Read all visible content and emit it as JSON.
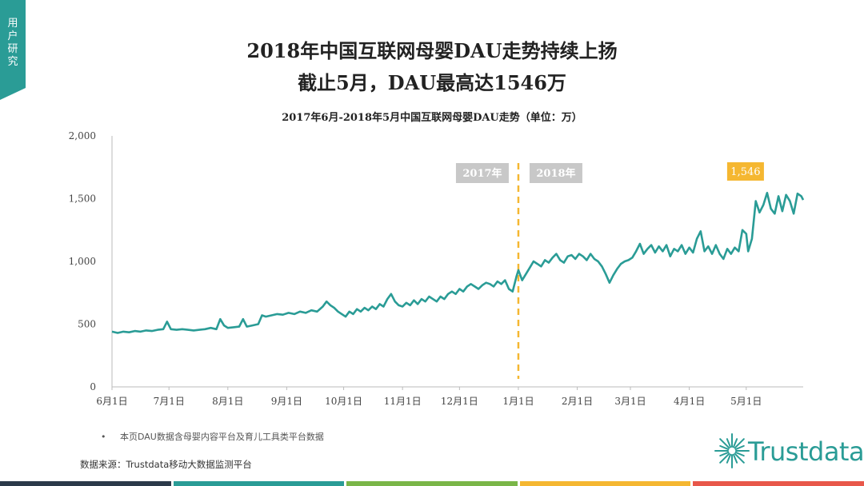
{
  "side_tab": {
    "label": "用户研究"
  },
  "header": {
    "title_line1": "2018年中国互联网母婴DAU走势持续上扬",
    "title_line2": "截止5月，DAU最高达1546万"
  },
  "chart_data": {
    "type": "line",
    "title": "2017年6月-2018年5月中国互联网母婴DAU走势（单位：万）",
    "xlabel": "",
    "ylabel": "",
    "ylim": [
      0,
      2000
    ],
    "yticks": [
      "0",
      "500",
      "1,000",
      "1,500",
      "2,000"
    ],
    "ytick_values": [
      0,
      500,
      1000,
      1500,
      2000
    ],
    "x_tick_labels": [
      "6月1日",
      "7月1日",
      "8月1日",
      "9月1日",
      "10月1日",
      "11月1日",
      "12月1日",
      "1月1日",
      "2月1日",
      "3月1日",
      "4月1日",
      "5月1日"
    ],
    "x_tick_days": [
      0,
      30,
      61,
      92,
      122,
      153,
      183,
      214,
      245,
      273,
      304,
      334
    ],
    "x_range_days": [
      0,
      364
    ],
    "grid": false,
    "line_color": "#2a9c96",
    "divider": {
      "day": 214,
      "color": "#f5b731",
      "left_label": "2017年",
      "right_label": "2018年"
    },
    "peak_label": {
      "text": "1,546",
      "day": 337,
      "value": 1546,
      "color": "#f5b731"
    },
    "series": [
      {
        "points": [
          [
            0,
            440
          ],
          [
            3,
            430
          ],
          [
            6,
            440
          ],
          [
            9,
            435
          ],
          [
            12,
            445
          ],
          [
            15,
            440
          ],
          [
            18,
            450
          ],
          [
            21,
            445
          ],
          [
            24,
            455
          ],
          [
            27,
            460
          ],
          [
            29,
            520
          ],
          [
            31,
            460
          ],
          [
            34,
            455
          ],
          [
            37,
            460
          ],
          [
            40,
            455
          ],
          [
            43,
            450
          ],
          [
            46,
            455
          ],
          [
            49,
            460
          ],
          [
            52,
            470
          ],
          [
            55,
            460
          ],
          [
            57,
            540
          ],
          [
            59,
            490
          ],
          [
            61,
            470
          ],
          [
            64,
            475
          ],
          [
            67,
            480
          ],
          [
            69,
            540
          ],
          [
            71,
            480
          ],
          [
            74,
            490
          ],
          [
            77,
            500
          ],
          [
            79,
            570
          ],
          [
            81,
            560
          ],
          [
            84,
            570
          ],
          [
            87,
            580
          ],
          [
            90,
            575
          ],
          [
            93,
            590
          ],
          [
            96,
            580
          ],
          [
            99,
            600
          ],
          [
            102,
            590
          ],
          [
            105,
            610
          ],
          [
            108,
            600
          ],
          [
            111,
            640
          ],
          [
            113,
            680
          ],
          [
            115,
            650
          ],
          [
            117,
            630
          ],
          [
            119,
            600
          ],
          [
            121,
            580
          ],
          [
            123,
            560
          ],
          [
            125,
            600
          ],
          [
            127,
            580
          ],
          [
            129,
            620
          ],
          [
            131,
            600
          ],
          [
            133,
            630
          ],
          [
            135,
            610
          ],
          [
            137,
            640
          ],
          [
            139,
            620
          ],
          [
            141,
            660
          ],
          [
            143,
            640
          ],
          [
            145,
            700
          ],
          [
            147,
            740
          ],
          [
            149,
            680
          ],
          [
            151,
            650
          ],
          [
            153,
            640
          ],
          [
            155,
            670
          ],
          [
            157,
            650
          ],
          [
            159,
            690
          ],
          [
            161,
            660
          ],
          [
            163,
            700
          ],
          [
            165,
            680
          ],
          [
            167,
            720
          ],
          [
            169,
            700
          ],
          [
            171,
            680
          ],
          [
            173,
            720
          ],
          [
            175,
            700
          ],
          [
            177,
            740
          ],
          [
            179,
            760
          ],
          [
            181,
            740
          ],
          [
            183,
            780
          ],
          [
            185,
            760
          ],
          [
            187,
            800
          ],
          [
            189,
            820
          ],
          [
            191,
            800
          ],
          [
            193,
            780
          ],
          [
            195,
            810
          ],
          [
            197,
            830
          ],
          [
            199,
            820
          ],
          [
            201,
            800
          ],
          [
            203,
            840
          ],
          [
            205,
            820
          ],
          [
            207,
            850
          ],
          [
            209,
            780
          ],
          [
            211,
            760
          ],
          [
            213,
            880
          ],
          [
            214,
            930
          ],
          [
            216,
            850
          ],
          [
            218,
            900
          ],
          [
            220,
            950
          ],
          [
            222,
            1000
          ],
          [
            224,
            980
          ],
          [
            226,
            960
          ],
          [
            228,
            1010
          ],
          [
            230,
            990
          ],
          [
            232,
            1030
          ],
          [
            234,
            1060
          ],
          [
            236,
            1010
          ],
          [
            238,
            990
          ],
          [
            240,
            1040
          ],
          [
            242,
            1050
          ],
          [
            244,
            1020
          ],
          [
            246,
            1060
          ],
          [
            248,
            1040
          ],
          [
            250,
            1010
          ],
          [
            252,
            1060
          ],
          [
            254,
            1020
          ],
          [
            256,
            1000
          ],
          [
            258,
            960
          ],
          [
            260,
            900
          ],
          [
            262,
            830
          ],
          [
            264,
            890
          ],
          [
            266,
            940
          ],
          [
            268,
            980
          ],
          [
            270,
            1000
          ],
          [
            272,
            1010
          ],
          [
            274,
            1030
          ],
          [
            276,
            1080
          ],
          [
            278,
            1140
          ],
          [
            280,
            1060
          ],
          [
            282,
            1100
          ],
          [
            284,
            1130
          ],
          [
            286,
            1070
          ],
          [
            288,
            1120
          ],
          [
            290,
            1080
          ],
          [
            292,
            1130
          ],
          [
            294,
            1040
          ],
          [
            296,
            1100
          ],
          [
            298,
            1080
          ],
          [
            300,
            1130
          ],
          [
            302,
            1060
          ],
          [
            304,
            1110
          ],
          [
            306,
            1070
          ],
          [
            308,
            1180
          ],
          [
            310,
            1240
          ],
          [
            312,
            1080
          ],
          [
            314,
            1120
          ],
          [
            316,
            1060
          ],
          [
            318,
            1130
          ],
          [
            320,
            1060
          ],
          [
            322,
            1020
          ],
          [
            324,
            1100
          ],
          [
            326,
            1060
          ],
          [
            328,
            1110
          ],
          [
            330,
            1080
          ],
          [
            332,
            1250
          ],
          [
            334,
            1220
          ],
          [
            335,
            1080
          ],
          [
            337,
            1180
          ],
          [
            339,
            1480
          ],
          [
            341,
            1390
          ],
          [
            343,
            1450
          ],
          [
            345,
            1546
          ],
          [
            347,
            1420
          ],
          [
            349,
            1380
          ],
          [
            351,
            1520
          ],
          [
            353,
            1400
          ],
          [
            355,
            1530
          ],
          [
            357,
            1480
          ],
          [
            359,
            1380
          ],
          [
            361,
            1540
          ],
          [
            363,
            1520
          ],
          [
            364,
            1490
          ]
        ]
      }
    ]
  },
  "footer": {
    "note_bullet": "•",
    "note": "本页DAU数据含母婴内容平台及育儿工具类平台数据",
    "source": "数据来源：Trustdata移动大数据监测平台",
    "logo_text": "Trustdata",
    "logo_icon": "starburst-icon",
    "bottom_bar_colors": [
      "#2b3a4a",
      "#2a9c96",
      "#7ab648",
      "#f5b731",
      "#e8574a"
    ]
  }
}
